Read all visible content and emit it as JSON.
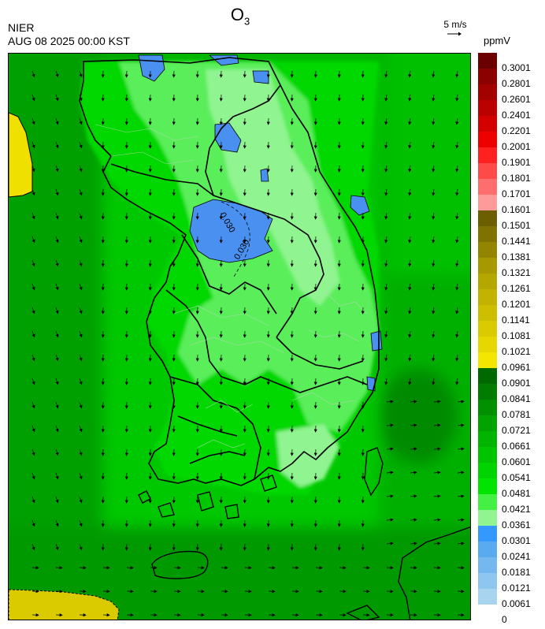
{
  "header": {
    "agency": "NIER",
    "datetime": "AUG 08 2025 00:00 KST",
    "species_main": "O",
    "species_sub": "3",
    "wind_reference": "5 m/s",
    "unit": "ppmV"
  },
  "colorbar": {
    "labels": [
      "0.3001",
      "0.2801",
      "0.2601",
      "0.2401",
      "0.2201",
      "0.2001",
      "0.1901",
      "0.1801",
      "0.1701",
      "0.1601",
      "0.1501",
      "0.1441",
      "0.1381",
      "0.1321",
      "0.1261",
      "0.1201",
      "0.1141",
      "0.1081",
      "0.1021",
      "0.0961",
      "0.0901",
      "0.0841",
      "0.0781",
      "0.0721",
      "0.0661",
      "0.0601",
      "0.0541",
      "0.0481",
      "0.0421",
      "0.0361",
      "0.0301",
      "0.0241",
      "0.0181",
      "0.0121",
      "0.0061",
      "0"
    ],
    "colors": [
      "#6b0000",
      "#8b0000",
      "#a30000",
      "#bb0000",
      "#d40000",
      "#ee0000",
      "#ff2020",
      "#ff4a4a",
      "#ff6e6e",
      "#ff9a9a",
      "#6b5f00",
      "#7f7200",
      "#938500",
      "#a79800",
      "#b5a600",
      "#c1b300",
      "#cdbf00",
      "#d9cb00",
      "#e6d700",
      "#f4e600",
      "#006a00",
      "#007d00",
      "#009000",
      "#00a300",
      "#00b400",
      "#00c400",
      "#00d400",
      "#00e400",
      "#44f044",
      "#90f490",
      "#3399ff",
      "#5aaaf0",
      "#75b8f0",
      "#8fc6f0",
      "#a8d4f0"
    ]
  },
  "map": {
    "contour_labels": [
      "0.030",
      "0.030"
    ],
    "field_colors": {
      "sea_west": "#00a000",
      "sea_south": "#009a00",
      "sea_east": "#00b000",
      "land": "#00d400",
      "land_light": "#44f044",
      "land_pale": "#90f490",
      "low_blue": "#4a90f0",
      "yellow": "#e6d700",
      "boundary": "#000000",
      "district": "#b0d0b0"
    }
  }
}
